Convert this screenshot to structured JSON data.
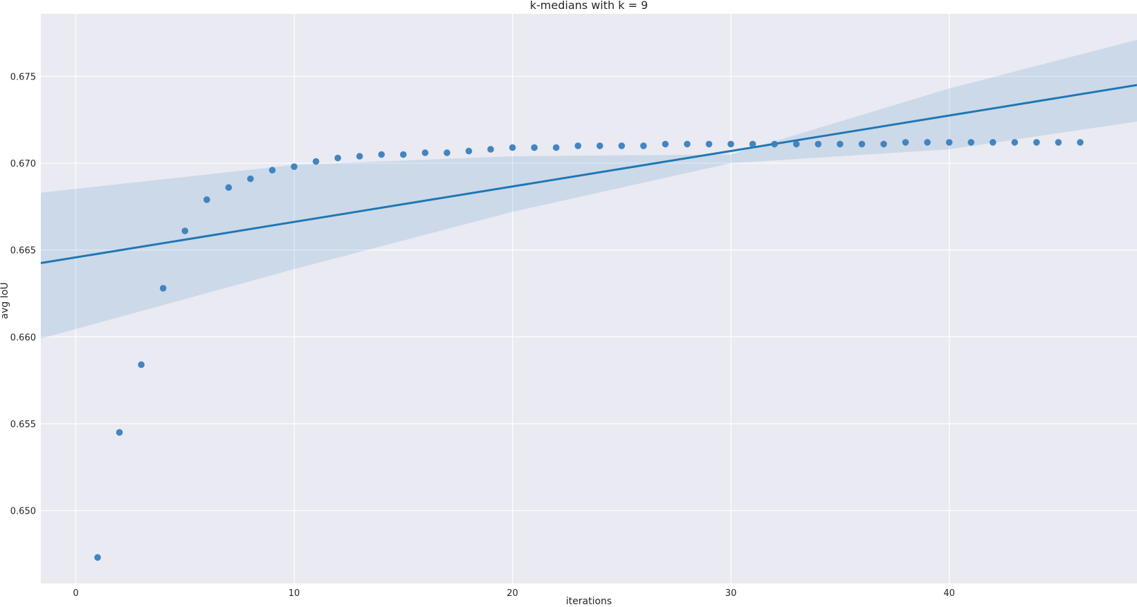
{
  "chart_data": {
    "type": "scatter",
    "title": "k-medians with k = 9",
    "xlabel": "iterations",
    "ylabel": "avg IoU",
    "xlim": [
      -1.6,
      48.6
    ],
    "ylim": [
      0.6458,
      0.6786
    ],
    "xticks": [
      0,
      10,
      20,
      30,
      40
    ],
    "xtick_labels": [
      "0",
      "10",
      "20",
      "30",
      "40"
    ],
    "yticks": [
      0.65,
      0.655,
      0.66,
      0.665,
      0.67,
      0.675
    ],
    "ytick_labels": [
      "0.650",
      "0.655",
      "0.660",
      "0.665",
      "0.670",
      "0.675"
    ],
    "grid": true,
    "series": [
      {
        "x": [
          1,
          2,
          3,
          4,
          5,
          6,
          7,
          8,
          9,
          10,
          11,
          12,
          13,
          14,
          15,
          16,
          17,
          18,
          19,
          20,
          21,
          22,
          23,
          24,
          25,
          26,
          27,
          28,
          29,
          30,
          31,
          32,
          33,
          34,
          35,
          36,
          37,
          38,
          39,
          40,
          41,
          42,
          43,
          44,
          45,
          46
        ],
        "y": [
          0.6473,
          0.6545,
          0.6584,
          0.6628,
          0.6661,
          0.6679,
          0.6686,
          0.6691,
          0.6696,
          0.6698,
          0.6701,
          0.6703,
          0.6704,
          0.6705,
          0.6705,
          0.6706,
          0.6706,
          0.6707,
          0.6708,
          0.6709,
          0.6709,
          0.6709,
          0.671,
          0.671,
          0.671,
          0.671,
          0.6711,
          0.6711,
          0.6711,
          0.6711,
          0.6711,
          0.6711,
          0.6711,
          0.6711,
          0.6711,
          0.6711,
          0.6711,
          0.6712,
          0.6712,
          0.6712,
          0.6712,
          0.6712,
          0.6712,
          0.6712,
          0.6712,
          0.6712
        ]
      }
    ],
    "regression": {
      "x": [
        -1.6,
        48.6
      ],
      "y": [
        0.66425,
        0.6745
      ]
    },
    "confidence_band": {
      "x": [
        -1.6,
        10,
        20,
        30,
        40,
        48.6
      ],
      "upper": [
        0.6683,
        0.6699,
        0.6704,
        0.6705,
        0.6743,
        0.6771
      ],
      "lower": [
        0.6599,
        0.6639,
        0.6672,
        0.67,
        0.6708,
        0.6724
      ]
    },
    "colors": {
      "background": "#eaeaf2",
      "grid": "#ffffff",
      "points": "#3a7fbd",
      "line": "#1f77b4",
      "band": "#1f77b4"
    }
  }
}
